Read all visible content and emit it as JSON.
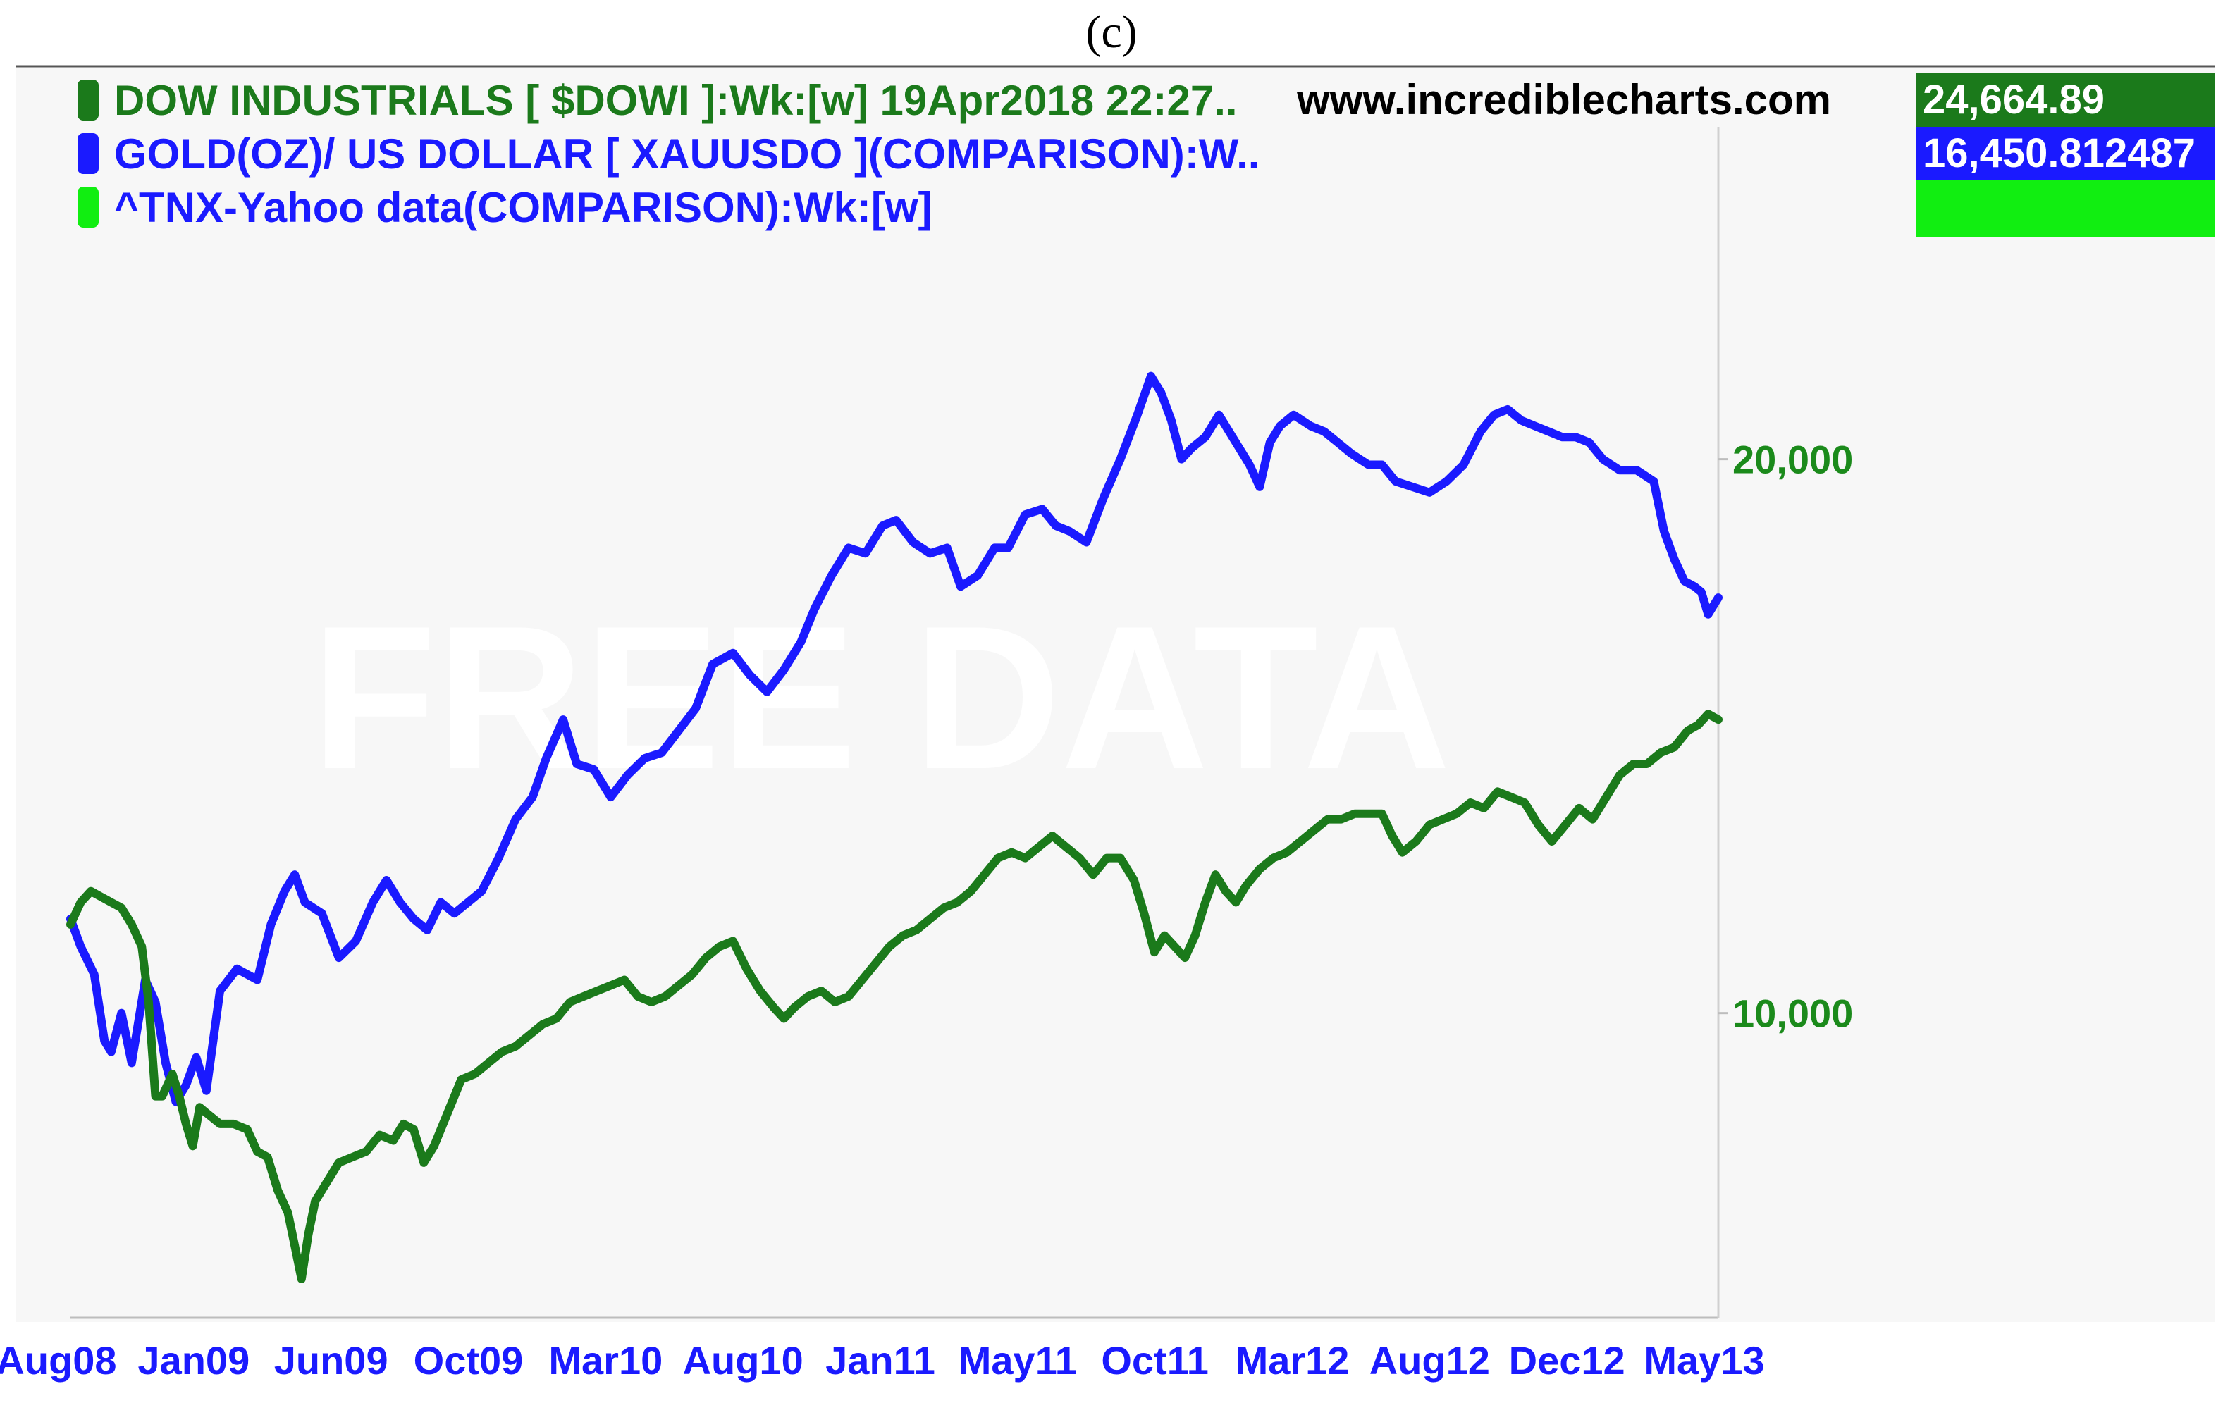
{
  "panel_label": "(c)",
  "header": {
    "site": "www.incrediblecharts.com"
  },
  "legend": [
    {
      "name": "DOW INDUSTRIALS [ $DOWI ]:Wk:[w]  19Apr2018 22:27..",
      "color": "#1b7a1b",
      "value": "24,664.89",
      "box_color": "#1b7a1b"
    },
    {
      "name": "GOLD(OZ)/ US DOLLAR [ XAUUSDO ](COMPARISON):W..",
      "color": "#1a1aff",
      "value": "16,450.812487",
      "box_color": "#1a1aff"
    },
    {
      "name": "^TNX-Yahoo data(COMPARISON):Wk:[w]",
      "color": "#11ee11",
      "value": "",
      "box_color": "#11ee11"
    }
  ],
  "watermark": "FREE DATA",
  "chart_data": {
    "type": "line",
    "x_tick_labels": [
      "Aug08",
      "Jan09",
      "Jun09",
      "Oct09",
      "Mar10",
      "Aug10",
      "Jan11",
      "May11",
      "Oct11",
      "Mar12",
      "Aug12",
      "Dec12",
      "May13"
    ],
    "y_tick_labels": [
      "20,000",
      "10,000"
    ],
    "y_ticks": [
      20000,
      10000
    ],
    "ylim": [
      4500,
      26000
    ],
    "y_axis_side": "right",
    "grid": false,
    "legend_position": "top-left",
    "series": [
      {
        "name": "GOLD(OZ)/ US DOLLAR [ XAUUSDO ](COMPARISON):W..",
        "color": "#1a1aff",
        "points": [
          [
            0.0,
            11700
          ],
          [
            0.15,
            11200
          ],
          [
            0.35,
            10700
          ],
          [
            0.5,
            9500
          ],
          [
            0.6,
            9300
          ],
          [
            0.75,
            10000
          ],
          [
            0.9,
            9100
          ],
          [
            1.1,
            10600
          ],
          [
            1.25,
            10200
          ],
          [
            1.4,
            9100
          ],
          [
            1.55,
            8400
          ],
          [
            1.7,
            8700
          ],
          [
            1.85,
            9200
          ],
          [
            2.0,
            8600
          ],
          [
            2.2,
            10400
          ],
          [
            2.45,
            10800
          ],
          [
            2.75,
            10600
          ],
          [
            2.95,
            11600
          ],
          [
            3.15,
            12200
          ],
          [
            3.3,
            12500
          ],
          [
            3.45,
            12000
          ],
          [
            3.7,
            11800
          ],
          [
            3.95,
            11000
          ],
          [
            4.2,
            11300
          ],
          [
            4.45,
            12000
          ],
          [
            4.65,
            12400
          ],
          [
            4.85,
            12000
          ],
          [
            5.05,
            11700
          ],
          [
            5.25,
            11500
          ],
          [
            5.45,
            12000
          ],
          [
            5.65,
            11800
          ],
          [
            5.85,
            12000
          ],
          [
            6.05,
            12200
          ],
          [
            6.3,
            12800
          ],
          [
            6.55,
            13500
          ],
          [
            6.8,
            13900
          ],
          [
            7.0,
            14600
          ],
          [
            7.25,
            15300
          ],
          [
            7.45,
            14500
          ],
          [
            7.7,
            14400
          ],
          [
            7.95,
            13900
          ],
          [
            8.2,
            14300
          ],
          [
            8.45,
            14600
          ],
          [
            8.7,
            14700
          ],
          [
            8.95,
            15100
          ],
          [
            9.2,
            15500
          ],
          [
            9.45,
            16300
          ],
          [
            9.75,
            16500
          ],
          [
            10.0,
            16100
          ],
          [
            10.25,
            15800
          ],
          [
            10.5,
            16200
          ],
          [
            10.75,
            16700
          ],
          [
            10.95,
            17300
          ],
          [
            11.2,
            17900
          ],
          [
            11.45,
            18400
          ],
          [
            11.7,
            18300
          ],
          [
            11.95,
            18800
          ],
          [
            12.15,
            18900
          ],
          [
            12.4,
            18500
          ],
          [
            12.65,
            18300
          ],
          [
            12.9,
            18400
          ],
          [
            13.1,
            17700
          ],
          [
            13.35,
            17900
          ],
          [
            13.6,
            18400
          ],
          [
            13.8,
            18400
          ],
          [
            14.05,
            19000
          ],
          [
            14.3,
            19100
          ],
          [
            14.5,
            18800
          ],
          [
            14.7,
            18700
          ],
          [
            14.95,
            18500
          ],
          [
            15.2,
            19300
          ],
          [
            15.45,
            20000
          ],
          [
            15.7,
            20800
          ],
          [
            15.9,
            21500
          ],
          [
            16.05,
            21200
          ],
          [
            16.2,
            20700
          ],
          [
            16.35,
            20000
          ],
          [
            16.5,
            20200
          ],
          [
            16.7,
            20400
          ],
          [
            16.9,
            20800
          ],
          [
            17.1,
            20400
          ],
          [
            17.35,
            19900
          ],
          [
            17.5,
            19500
          ],
          [
            17.65,
            20300
          ],
          [
            17.8,
            20600
          ],
          [
            18.0,
            20800
          ],
          [
            18.25,
            20600
          ],
          [
            18.45,
            20500
          ],
          [
            18.65,
            20300
          ],
          [
            18.85,
            20100
          ],
          [
            19.1,
            19900
          ],
          [
            19.3,
            19900
          ],
          [
            19.5,
            19600
          ],
          [
            19.75,
            19500
          ],
          [
            20.0,
            19400
          ],
          [
            20.25,
            19600
          ],
          [
            20.5,
            19900
          ],
          [
            20.75,
            20500
          ],
          [
            20.95,
            20800
          ],
          [
            21.15,
            20900
          ],
          [
            21.35,
            20700
          ],
          [
            21.55,
            20600
          ],
          [
            21.75,
            20500
          ],
          [
            21.95,
            20400
          ],
          [
            22.15,
            20400
          ],
          [
            22.35,
            20300
          ],
          [
            22.55,
            20000
          ],
          [
            22.8,
            19800
          ],
          [
            23.05,
            19800
          ],
          [
            23.3,
            19600
          ],
          [
            23.45,
            18700
          ],
          [
            23.6,
            18200
          ],
          [
            23.75,
            17800
          ],
          [
            23.9,
            17700
          ],
          [
            24.0,
            17600
          ],
          [
            24.1,
            17200
          ],
          [
            24.25,
            17500
          ]
        ]
      },
      {
        "name": "DOW INDUSTRIALS [ $DOWI ]:Wk:[w]  19Apr2018 22:27..",
        "color": "#1b7a1b",
        "points": [
          [
            0.0,
            11600
          ],
          [
            0.15,
            12000
          ],
          [
            0.3,
            12200
          ],
          [
            0.45,
            12100
          ],
          [
            0.6,
            12000
          ],
          [
            0.75,
            11900
          ],
          [
            0.9,
            11600
          ],
          [
            1.05,
            11200
          ],
          [
            1.15,
            10200
          ],
          [
            1.25,
            8500
          ],
          [
            1.35,
            8500
          ],
          [
            1.5,
            8900
          ],
          [
            1.6,
            8500
          ],
          [
            1.7,
            8000
          ],
          [
            1.8,
            7600
          ],
          [
            1.9,
            8300
          ],
          [
            2.0,
            8200
          ],
          [
            2.2,
            8000
          ],
          [
            2.4,
            8000
          ],
          [
            2.6,
            7900
          ],
          [
            2.75,
            7500
          ],
          [
            2.9,
            7400
          ],
          [
            3.05,
            6800
          ],
          [
            3.2,
            6400
          ],
          [
            3.3,
            5800
          ],
          [
            3.4,
            5200
          ],
          [
            3.5,
            6000
          ],
          [
            3.6,
            6600
          ],
          [
            3.75,
            6900
          ],
          [
            3.95,
            7300
          ],
          [
            4.15,
            7400
          ],
          [
            4.35,
            7500
          ],
          [
            4.55,
            7800
          ],
          [
            4.75,
            7700
          ],
          [
            4.9,
            8000
          ],
          [
            5.05,
            7900
          ],
          [
            5.2,
            7300
          ],
          [
            5.35,
            7600
          ],
          [
            5.55,
            8200
          ],
          [
            5.75,
            8800
          ],
          [
            5.95,
            8900
          ],
          [
            6.15,
            9100
          ],
          [
            6.35,
            9300
          ],
          [
            6.55,
            9400
          ],
          [
            6.75,
            9600
          ],
          [
            6.95,
            9800
          ],
          [
            7.15,
            9900
          ],
          [
            7.35,
            10200
          ],
          [
            7.55,
            10300
          ],
          [
            7.75,
            10400
          ],
          [
            7.95,
            10500
          ],
          [
            8.15,
            10600
          ],
          [
            8.35,
            10300
          ],
          [
            8.55,
            10200
          ],
          [
            8.75,
            10300
          ],
          [
            8.95,
            10500
          ],
          [
            9.15,
            10700
          ],
          [
            9.35,
            11000
          ],
          [
            9.55,
            11200
          ],
          [
            9.75,
            11300
          ],
          [
            9.95,
            10800
          ],
          [
            10.15,
            10400
          ],
          [
            10.35,
            10100
          ],
          [
            10.5,
            9900
          ],
          [
            10.65,
            10100
          ],
          [
            10.85,
            10300
          ],
          [
            11.05,
            10400
          ],
          [
            11.25,
            10200
          ],
          [
            11.45,
            10300
          ],
          [
            11.65,
            10600
          ],
          [
            11.85,
            10900
          ],
          [
            12.05,
            11200
          ],
          [
            12.25,
            11400
          ],
          [
            12.45,
            11500
          ],
          [
            12.65,
            11700
          ],
          [
            12.85,
            11900
          ],
          [
            13.05,
            12000
          ],
          [
            13.25,
            12200
          ],
          [
            13.45,
            12500
          ],
          [
            13.65,
            12800
          ],
          [
            13.85,
            12900
          ],
          [
            14.05,
            12800
          ],
          [
            14.25,
            13000
          ],
          [
            14.45,
            13200
          ],
          [
            14.65,
            13000
          ],
          [
            14.85,
            12800
          ],
          [
            15.05,
            12500
          ],
          [
            15.25,
            12800
          ],
          [
            15.45,
            12800
          ],
          [
            15.65,
            12400
          ],
          [
            15.8,
            11800
          ],
          [
            15.95,
            11100
          ],
          [
            16.1,
            11400
          ],
          [
            16.25,
            11200
          ],
          [
            16.4,
            11000
          ],
          [
            16.55,
            11400
          ],
          [
            16.7,
            12000
          ],
          [
            16.85,
            12500
          ],
          [
            17.0,
            12200
          ],
          [
            17.15,
            12000
          ],
          [
            17.3,
            12300
          ],
          [
            17.5,
            12600
          ],
          [
            17.7,
            12800
          ],
          [
            17.9,
            12900
          ],
          [
            18.1,
            13100
          ],
          [
            18.3,
            13300
          ],
          [
            18.5,
            13500
          ],
          [
            18.7,
            13500
          ],
          [
            18.9,
            13600
          ],
          [
            19.1,
            13600
          ],
          [
            19.3,
            13600
          ],
          [
            19.45,
            13200
          ],
          [
            19.6,
            12900
          ],
          [
            19.8,
            13100
          ],
          [
            20.0,
            13400
          ],
          [
            20.2,
            13500
          ],
          [
            20.4,
            13600
          ],
          [
            20.6,
            13800
          ],
          [
            20.8,
            13700
          ],
          [
            21.0,
            14000
          ],
          [
            21.2,
            13900
          ],
          [
            21.4,
            13800
          ],
          [
            21.6,
            13400
          ],
          [
            21.8,
            13100
          ],
          [
            22.0,
            13400
          ],
          [
            22.2,
            13700
          ],
          [
            22.4,
            13500
          ],
          [
            22.6,
            13900
          ],
          [
            22.8,
            14300
          ],
          [
            23.0,
            14500
          ],
          [
            23.2,
            14500
          ],
          [
            23.4,
            14700
          ],
          [
            23.6,
            14800
          ],
          [
            23.8,
            15100
          ],
          [
            23.95,
            15200
          ],
          [
            24.1,
            15400
          ],
          [
            24.25,
            15300
          ]
        ]
      }
    ]
  }
}
